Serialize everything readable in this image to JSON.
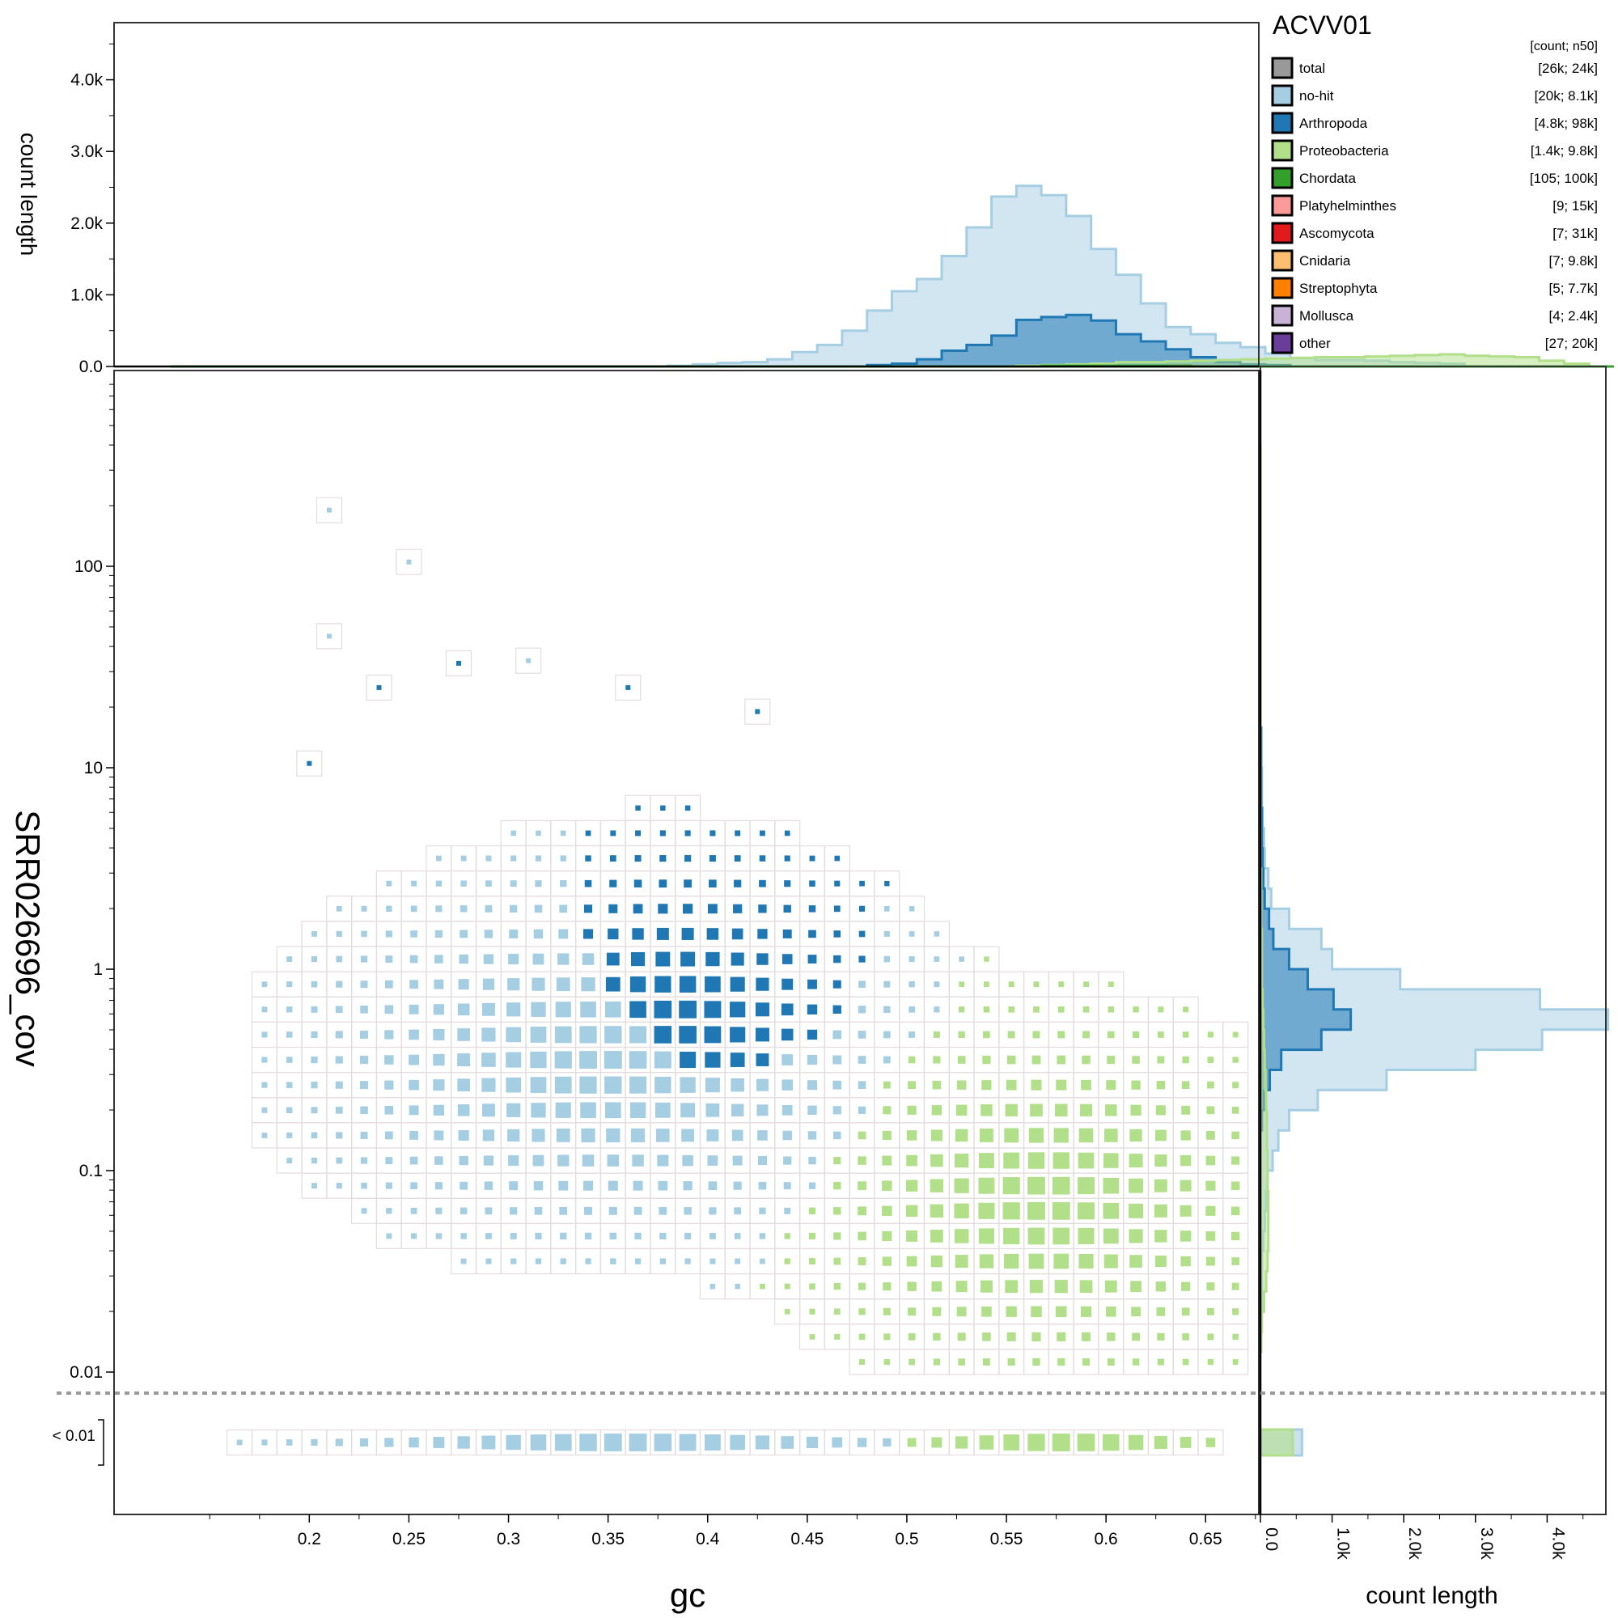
{
  "chart_data": {
    "type": "scatter",
    "title": "ACVV01",
    "xlabel": "gc",
    "ylabel": "SRR026696_cov",
    "x_lim": [
      0.13,
      0.7
    ],
    "x_ticks": [
      "0.2",
      "0.25",
      "0.3",
      "0.35",
      "0.4",
      "0.45",
      "0.5",
      "0.55",
      "0.6",
      "0.65"
    ],
    "y_scale": "log",
    "y_ticks": [
      "0.01",
      "0.1",
      "1",
      "10",
      "100"
    ],
    "y_low_label": "< 0.01",
    "top_histogram": {
      "ylabel": "count length",
      "y_ticks": [
        "0.0",
        "1.0k",
        "2.0k",
        "3.0k",
        "4.0k"
      ],
      "y_max": 4800
    },
    "side_histogram": {
      "xlabel": "count length",
      "x_ticks": [
        "0.0",
        "1.0k",
        "2.0k",
        "3.0k",
        "4.0k"
      ],
      "x_max": 4800
    },
    "legend": {
      "header": "[count; n50]",
      "entries": [
        {
          "name": "total",
          "stats": "[26k; 24k]",
          "color": "#999999"
        },
        {
          "name": "no-hit",
          "stats": "[20k; 8.1k]",
          "color": "#a6cee3"
        },
        {
          "name": "Arthropoda",
          "stats": "[4.8k; 98k]",
          "color": "#1f78b4"
        },
        {
          "name": "Proteobacteria",
          "stats": "[1.4k; 9.8k]",
          "color": "#b2df8a"
        },
        {
          "name": "Chordata",
          "stats": "[105; 100k]",
          "color": "#33a02c"
        },
        {
          "name": "Platyhelminthes",
          "stats": "[9; 15k]",
          "color": "#fb9a99"
        },
        {
          "name": "Ascomycota",
          "stats": "[7; 31k]",
          "color": "#e31a1c"
        },
        {
          "name": "Cnidaria",
          "stats": "[7; 9.8k]",
          "color": "#fdbf6f"
        },
        {
          "name": "Streptophyta",
          "stats": "[5; 7.7k]",
          "color": "#ff7f00"
        },
        {
          "name": "Mollusca",
          "stats": "[4; 2.4k]",
          "color": "#cab2d6"
        },
        {
          "name": "other",
          "stats": "[27; 20k]",
          "color": "#6a3d9a"
        }
      ]
    },
    "gc_histogram": {
      "bin_start": 0.13,
      "bin_width": 0.0125,
      "series": [
        {
          "name": "no-hit",
          "values": [
            0,
            0,
            0,
            0,
            0,
            0,
            0,
            0,
            0,
            0,
            0,
            0,
            0,
            0,
            0,
            0,
            0,
            0,
            0,
            0,
            10,
            30,
            50,
            60,
            100,
            200,
            300,
            500,
            780,
            1050,
            1220,
            1540,
            1940,
            2370,
            2520,
            2390,
            2100,
            1640,
            1280,
            880,
            550,
            450,
            330,
            270,
            180,
            120,
            90,
            90,
            80,
            60,
            50,
            40,
            0,
            0,
            0,
            0,
            0,
            0
          ]
        },
        {
          "name": "Arthropoda",
          "values": [
            0,
            0,
            0,
            0,
            0,
            0,
            0,
            0,
            0,
            0,
            0,
            0,
            0,
            0,
            0,
            0,
            0,
            0,
            0,
            0,
            0,
            0,
            0,
            0,
            0,
            0,
            0,
            0,
            20,
            40,
            100,
            220,
            300,
            430,
            650,
            690,
            720,
            640,
            450,
            350,
            240,
            130,
            60,
            30,
            20,
            0,
            0,
            0,
            0,
            0,
            0,
            0,
            0,
            0,
            0,
            0,
            0,
            0
          ]
        },
        {
          "name": "Proteobacteria",
          "values": [
            0,
            0,
            0,
            0,
            0,
            0,
            0,
            0,
            0,
            0,
            0,
            0,
            0,
            0,
            0,
            0,
            0,
            0,
            0,
            0,
            0,
            0,
            0,
            0,
            0,
            0,
            0,
            0,
            0,
            0,
            0,
            0,
            0,
            0,
            10,
            20,
            30,
            40,
            60,
            60,
            70,
            80,
            90,
            100,
            110,
            120,
            130,
            130,
            140,
            150,
            160,
            170,
            150,
            140,
            130,
            80,
            40,
            0
          ]
        },
        {
          "name": "Chordata",
          "values": [
            0,
            0,
            0,
            0,
            0,
            0,
            0,
            0,
            0,
            0,
            0,
            0,
            0,
            0,
            0,
            0,
            0,
            0,
            0,
            0,
            0,
            0,
            0,
            0,
            0,
            0,
            0,
            0,
            0,
            0,
            0,
            0,
            0,
            0,
            0,
            10,
            10,
            10,
            10,
            10,
            10,
            0,
            0,
            0,
            0,
            0,
            0,
            0,
            0,
            0,
            0,
            0,
            0,
            0,
            0,
            0,
            0,
            0
          ]
        }
      ]
    },
    "cov_histogram": {
      "log10_bin_start": -1.9,
      "log10_bin_width": 0.1,
      "series": [
        {
          "name": "no-hit",
          "values": [
            10,
            10,
            20,
            20,
            20,
            40,
            60,
            80,
            100,
            170,
            250,
            400,
            800,
            1760,
            3000,
            3930,
            4850,
            3900,
            1950,
            1000,
            850,
            400,
            150,
            110,
            60,
            50,
            30,
            20,
            20,
            10,
            10,
            0,
            0,
            0,
            0,
            0,
            0,
            0,
            0,
            0,
            0,
            0,
            0,
            0,
            0
          ]
        },
        {
          "name": "Arthropoda",
          "values": [
            0,
            0,
            0,
            0,
            0,
            0,
            0,
            0,
            0,
            0,
            0,
            20,
            50,
            130,
            290,
            850,
            1260,
            1020,
            660,
            400,
            180,
            120,
            60,
            40,
            30,
            20,
            20,
            10,
            10,
            10,
            10,
            0,
            0,
            0,
            0,
            0,
            0,
            0,
            0,
            0,
            0,
            0,
            0,
            0,
            0
          ]
        },
        {
          "name": "Proteobacteria",
          "values": [
            10,
            20,
            50,
            80,
            100,
            110,
            110,
            110,
            100,
            100,
            90,
            90,
            80,
            70,
            60,
            50,
            40,
            30,
            20,
            20,
            20,
            10,
            10,
            10,
            0,
            0,
            0,
            0,
            0,
            0,
            0,
            0,
            0,
            0,
            0,
            0,
            0,
            0,
            0,
            0,
            0,
            0,
            0,
            0,
            0
          ]
        }
      ],
      "below_threshold": [
        {
          "name": "no-hit",
          "value": 580
        },
        {
          "name": "Proteobacteria",
          "value": 450
        }
      ]
    },
    "grid_summary": {
      "description_points": [
        {
          "gc": 0.21,
          "cov": 190,
          "taxon": "no-hit"
        },
        {
          "gc": 0.25,
          "cov": 105,
          "taxon": "no-hit"
        },
        {
          "gc": 0.21,
          "cov": 45,
          "taxon": "no-hit"
        },
        {
          "gc": 0.275,
          "cov": 33,
          "taxon": "Arthropoda"
        },
        {
          "gc": 0.31,
          "cov": 34,
          "taxon": "no-hit"
        },
        {
          "gc": 0.235,
          "cov": 25,
          "taxon": "Arthropoda"
        },
        {
          "gc": 0.36,
          "cov": 25,
          "taxon": "Arthropoda"
        },
        {
          "gc": 0.425,
          "cov": 19,
          "taxon": "Arthropoda"
        },
        {
          "gc": 0.2,
          "cov": 10.5,
          "taxon": "Arthropoda"
        }
      ]
    }
  }
}
